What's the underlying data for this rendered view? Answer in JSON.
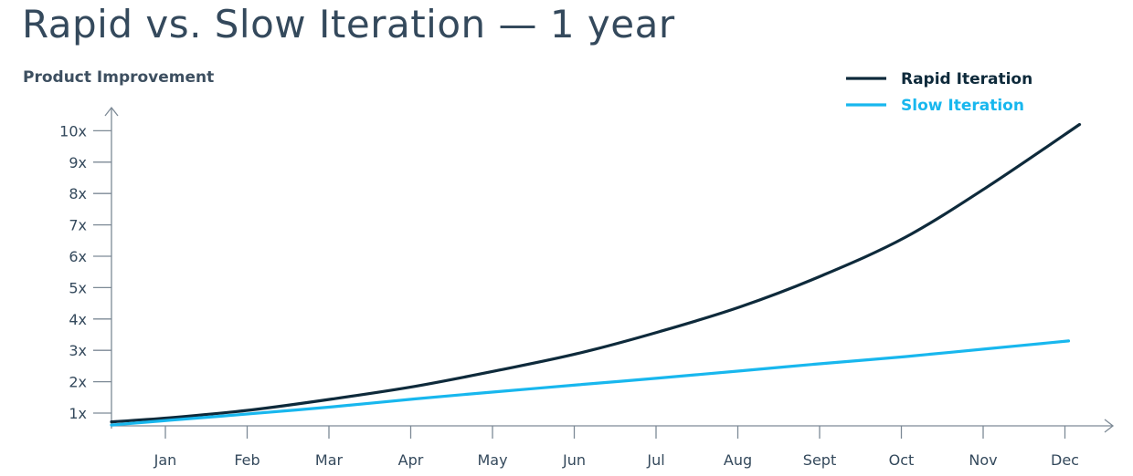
{
  "chart_data": {
    "type": "line",
    "title": "Rapid vs. Slow Iteration —  1 year",
    "xlabel": "",
    "ylabel": "Product Improvement",
    "categories": [
      "Jan",
      "Feb",
      "Mar",
      "Apr",
      "May",
      "Jun",
      "Jul",
      "Aug",
      "Sept",
      "Oct",
      "Nov",
      "Dec"
    ],
    "y_ticks": [
      "1x",
      "2x",
      "3x",
      "4x",
      "5x",
      "6x",
      "7x",
      "8x",
      "9x",
      "10x"
    ],
    "ylim": [
      0.55,
      10.5
    ],
    "legend_position": "top-right",
    "grid": false,
    "series": [
      {
        "name": "Rapid Iteration",
        "color": "#0e2a3b",
        "x": [
          "Jan",
          "Feb",
          "Mar",
          "Apr",
          "May",
          "Jun",
          "Jul",
          "Aug",
          "Sept",
          "Oct",
          "Nov",
          "Dec"
        ],
        "values": [
          0.85,
          1.1,
          1.45,
          1.85,
          2.35,
          2.9,
          3.6,
          4.4,
          5.4,
          6.6,
          8.2,
          10.2
        ]
      },
      {
        "name": "Slow Iteration",
        "color": "#18b7ee",
        "x": [
          "Jan",
          "Feb",
          "Mar",
          "Apr",
          "May",
          "Jun",
          "Jul",
          "Aug",
          "Sept",
          "Oct",
          "Nov",
          "Dec"
        ],
        "values": [
          0.77,
          0.98,
          1.2,
          1.45,
          1.68,
          1.9,
          2.12,
          2.35,
          2.58,
          2.8,
          3.05,
          3.3
        ]
      }
    ]
  }
}
